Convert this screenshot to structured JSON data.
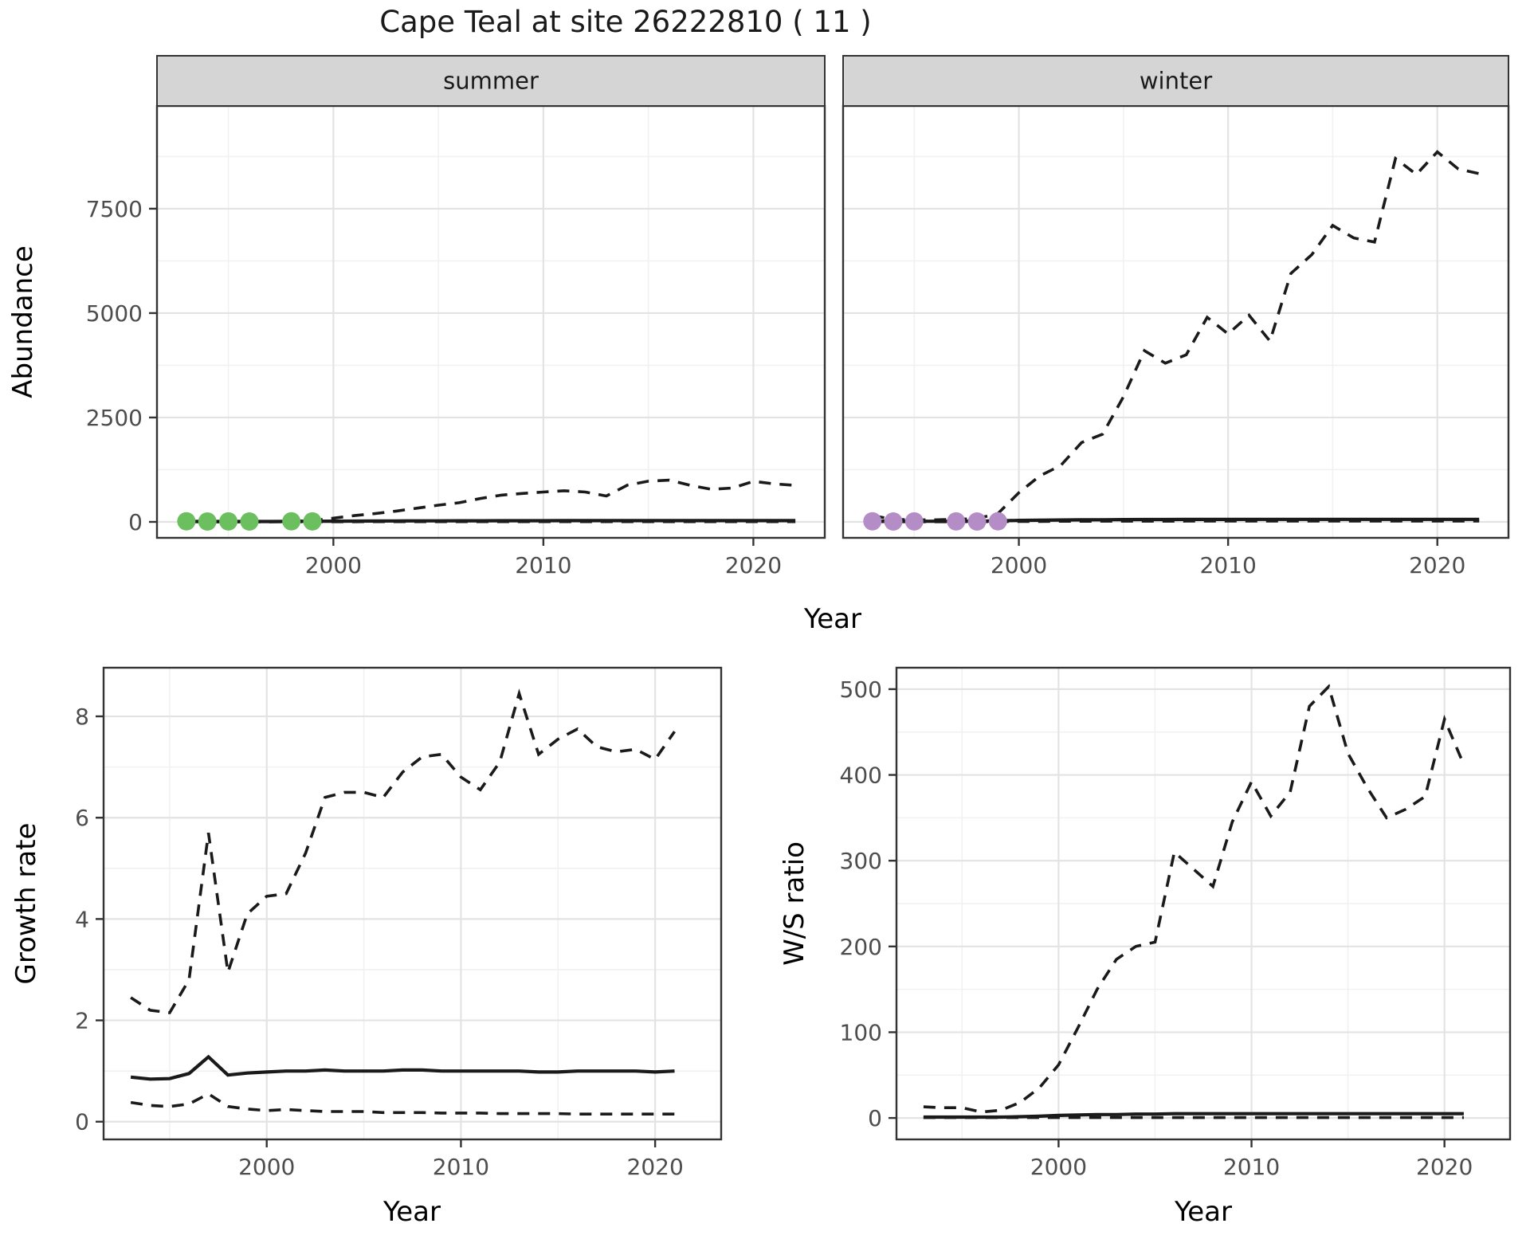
{
  "title": "Cape Teal at site 26222810 ( 11 )",
  "colors": {
    "line": "#1a1a1a",
    "summer_points": "#6cbf5f",
    "winter_points": "#b48cc6",
    "strip_bg": "#d5d5d5",
    "panel_bg": "#ffffff",
    "panel_border": "#333333",
    "grid_major": "#e3e3e3",
    "grid_minor": "#f1f1f1",
    "tick_text": "#4d4d4d",
    "axis_title_text": "#000000"
  },
  "chart_data": [
    {
      "id": "abundance-summer",
      "type": "line",
      "facet_label": "summer",
      "xlabel": "Year",
      "ylabel": "Abundance",
      "xlim": [
        1991.6,
        2023.4
      ],
      "ylim": [
        -382,
        9960
      ],
      "xticks": [
        2000,
        2010,
        2020
      ],
      "xticks_minor": [
        1995,
        2005,
        2015
      ],
      "yticks": [
        0,
        2500,
        5000,
        7500
      ],
      "yticks_minor": [
        1250,
        3750,
        6250,
        8750
      ],
      "grid": true,
      "series": [
        {
          "name": "modelled_upper_ci",
          "style": "dashed",
          "years": [
            1993,
            1994,
            1995,
            1996,
            1997,
            1998,
            1999,
            2000,
            2001,
            2002,
            2003,
            2004,
            2005,
            2006,
            2007,
            2008,
            2009,
            2010,
            2011,
            2012,
            2013,
            2014,
            2015,
            2016,
            2017,
            2018,
            2019,
            2020,
            2021,
            2022
          ],
          "values": [
            10,
            8,
            8,
            8,
            8,
            10,
            30,
            90,
            150,
            200,
            260,
            330,
            400,
            460,
            560,
            640,
            680,
            715,
            745,
            715,
            620,
            880,
            975,
            1000,
            875,
            780,
            810,
            970,
            910,
            875
          ]
        },
        {
          "name": "modelled_estimate",
          "style": "solid",
          "years": [
            1993,
            1994,
            1995,
            1996,
            1997,
            1998,
            1999,
            2000,
            2001,
            2002,
            2003,
            2004,
            2005,
            2006,
            2007,
            2008,
            2009,
            2010,
            2011,
            2012,
            2013,
            2014,
            2015,
            2016,
            2017,
            2018,
            2019,
            2020,
            2021,
            2022
          ],
          "values": [
            12,
            10,
            10,
            10,
            10,
            12,
            14,
            16,
            18,
            20,
            22,
            24,
            25,
            26,
            27,
            28,
            28,
            29,
            30,
            30,
            30,
            30,
            30,
            30,
            30,
            30,
            30,
            30,
            30,
            30
          ]
        },
        {
          "name": "modelled_lower_ci",
          "style": "dashed",
          "years": [
            1993,
            1994,
            1995,
            1996,
            1997,
            1998,
            1999,
            2000,
            2001,
            2002,
            2003,
            2004,
            2005,
            2006,
            2007,
            2008,
            2009,
            2010,
            2011,
            2012,
            2013,
            2014,
            2015,
            2016,
            2017,
            2018,
            2019,
            2020,
            2021,
            2022
          ],
          "values": [
            3,
            2,
            2,
            2,
            2,
            3,
            3,
            4,
            4,
            5,
            5,
            5,
            6,
            6,
            6,
            6,
            6,
            6,
            6,
            6,
            6,
            6,
            6,
            6,
            6,
            6,
            6,
            6,
            6,
            6
          ]
        },
        {
          "name": "observed_counts",
          "style": "points",
          "color_key": "summer_points",
          "years": [
            1993,
            1994,
            1995,
            1996,
            1998,
            1999
          ],
          "values": [
            15,
            10,
            12,
            10,
            14,
            12
          ]
        }
      ]
    },
    {
      "id": "abundance-winter",
      "type": "line",
      "facet_label": "winter",
      "xlabel": "Year",
      "ylabel": "Abundance",
      "xlim": [
        1991.6,
        2023.4
      ],
      "ylim": [
        -382,
        9960
      ],
      "xticks": [
        2000,
        2010,
        2020
      ],
      "xticks_minor": [
        1995,
        2005,
        2015
      ],
      "yticks": [
        0,
        2500,
        5000,
        7500
      ],
      "yticks_minor": [
        1250,
        3750,
        6250,
        8750
      ],
      "grid": true,
      "series": [
        {
          "name": "modelled_upper_ci",
          "style": "dashed",
          "years": [
            1993,
            1994,
            1995,
            1996,
            1997,
            1998,
            1999,
            2000,
            2001,
            2002,
            2003,
            2004,
            2005,
            2006,
            2007,
            2008,
            2009,
            2010,
            2011,
            2012,
            2013,
            2014,
            2015,
            2016,
            2017,
            2018,
            2019,
            2020,
            2021,
            2022
          ],
          "values": [
            150,
            60,
            50,
            50,
            60,
            80,
            200,
            700,
            1100,
            1350,
            1900,
            2100,
            3000,
            4100,
            3800,
            4000,
            4900,
            4500,
            4950,
            4330,
            5950,
            6400,
            7100,
            6800,
            6700,
            8700,
            8320,
            8860,
            8450,
            8340
          ]
        },
        {
          "name": "modelled_estimate",
          "style": "solid",
          "years": [
            1993,
            1994,
            1995,
            1996,
            1997,
            1998,
            1999,
            2000,
            2001,
            2002,
            2003,
            2004,
            2005,
            2006,
            2007,
            2008,
            2009,
            2010,
            2011,
            2012,
            2013,
            2014,
            2015,
            2016,
            2017,
            2018,
            2019,
            2020,
            2021,
            2022
          ],
          "values": [
            20,
            15,
            15,
            15,
            15,
            18,
            25,
            35,
            40,
            45,
            50,
            52,
            55,
            56,
            57,
            58,
            58,
            59,
            60,
            60,
            60,
            60,
            60,
            60,
            60,
            60,
            60,
            60,
            60,
            60
          ]
        },
        {
          "name": "modelled_lower_ci",
          "style": "dashed",
          "years": [
            1993,
            1994,
            1995,
            1996,
            1997,
            1998,
            1999,
            2000,
            2001,
            2002,
            2003,
            2004,
            2005,
            2006,
            2007,
            2008,
            2009,
            2010,
            2011,
            2012,
            2013,
            2014,
            2015,
            2016,
            2017,
            2018,
            2019,
            2020,
            2021,
            2022
          ],
          "values": [
            5,
            4,
            4,
            4,
            4,
            5,
            8,
            10,
            12,
            14,
            15,
            16,
            16,
            17,
            17,
            18,
            18,
            18,
            18,
            18,
            18,
            18,
            18,
            18,
            18,
            18,
            18,
            18,
            18,
            18
          ]
        },
        {
          "name": "observed_counts",
          "style": "points",
          "color_key": "winter_points",
          "years": [
            1993,
            1994,
            1995,
            1997,
            1998,
            1999
          ],
          "values": [
            15,
            10,
            12,
            12,
            10,
            14
          ]
        }
      ]
    },
    {
      "id": "growth-rate",
      "type": "line",
      "facet_label": null,
      "xlabel": "Year",
      "ylabel": "Growth rate",
      "xlim": [
        1991.6,
        2023.4
      ],
      "ylim": [
        -0.35,
        8.96
      ],
      "xticks": [
        2000,
        2010,
        2020
      ],
      "xticks_minor": [
        1995,
        2005,
        2015
      ],
      "yticks": [
        0,
        2,
        4,
        6,
        8
      ],
      "yticks_minor": [
        1,
        3,
        5,
        7
      ],
      "grid": true,
      "series": [
        {
          "name": "upper_ci",
          "style": "dashed",
          "years": [
            1993,
            1994,
            1995,
            1996,
            1997,
            1998,
            1999,
            2000,
            2001,
            2002,
            2003,
            2004,
            2005,
            2006,
            2007,
            2008,
            2009,
            2010,
            2011,
            2012,
            2013,
            2014,
            2015,
            2016,
            2017,
            2018,
            2019,
            2020,
            2021
          ],
          "values": [
            2.45,
            2.2,
            2.15,
            2.8,
            5.7,
            2.95,
            4.1,
            4.45,
            4.5,
            5.3,
            6.4,
            6.5,
            6.5,
            6.4,
            6.9,
            7.2,
            7.25,
            6.8,
            6.55,
            7.1,
            8.45,
            7.25,
            7.55,
            7.75,
            7.4,
            7.3,
            7.35,
            7.15,
            7.7
          ]
        },
        {
          "name": "estimate",
          "style": "solid",
          "years": [
            1993,
            1994,
            1995,
            1996,
            1997,
            1998,
            1999,
            2000,
            2001,
            2002,
            2003,
            2004,
            2005,
            2006,
            2007,
            2008,
            2009,
            2010,
            2011,
            2012,
            2013,
            2014,
            2015,
            2016,
            2017,
            2018,
            2019,
            2020,
            2021
          ],
          "values": [
            0.88,
            0.84,
            0.85,
            0.95,
            1.28,
            0.92,
            0.96,
            0.98,
            1.0,
            1.0,
            1.02,
            1.0,
            1.0,
            1.0,
            1.02,
            1.02,
            1.0,
            1.0,
            1.0,
            1.0,
            1.0,
            0.98,
            0.98,
            1.0,
            1.0,
            1.0,
            1.0,
            0.98,
            1.0
          ]
        },
        {
          "name": "lower_ci",
          "style": "dashed",
          "years": [
            1993,
            1994,
            1995,
            1996,
            1997,
            1998,
            1999,
            2000,
            2001,
            2002,
            2003,
            2004,
            2005,
            2006,
            2007,
            2008,
            2009,
            2010,
            2011,
            2012,
            2013,
            2014,
            2015,
            2016,
            2017,
            2018,
            2019,
            2020,
            2021
          ],
          "values": [
            0.38,
            0.32,
            0.3,
            0.35,
            0.55,
            0.3,
            0.25,
            0.22,
            0.24,
            0.22,
            0.2,
            0.2,
            0.2,
            0.18,
            0.18,
            0.18,
            0.17,
            0.17,
            0.17,
            0.16,
            0.16,
            0.16,
            0.16,
            0.15,
            0.15,
            0.15,
            0.15,
            0.15,
            0.15
          ]
        }
      ]
    },
    {
      "id": "ws-ratio",
      "type": "line",
      "facet_label": null,
      "xlabel": "Year",
      "ylabel": "W/S ratio",
      "xlim": [
        1991.6,
        2023.4
      ],
      "ylim": [
        -25,
        525
      ],
      "xticks": [
        2000,
        2010,
        2020
      ],
      "xticks_minor": [
        1995,
        2005,
        2015
      ],
      "yticks": [
        0,
        100,
        200,
        300,
        400,
        500
      ],
      "yticks_minor": [
        50,
        150,
        250,
        350,
        450
      ],
      "grid": true,
      "series": [
        {
          "name": "upper_ci",
          "style": "dashed",
          "years": [
            1993,
            1994,
            1995,
            1996,
            1997,
            1998,
            1999,
            2000,
            2001,
            2002,
            2003,
            2004,
            2005,
            2006,
            2007,
            2008,
            2009,
            2010,
            2011,
            2012,
            2013,
            2014,
            2015,
            2016,
            2017,
            2018,
            2019,
            2020,
            2021
          ],
          "values": [
            13,
            12,
            12,
            7,
            9,
            18,
            35,
            62,
            105,
            150,
            185,
            200,
            205,
            310,
            290,
            270,
            345,
            392,
            352,
            380,
            480,
            503,
            425,
            385,
            350,
            360,
            375,
            465,
            412
          ]
        },
        {
          "name": "estimate",
          "style": "solid",
          "years": [
            1993,
            1994,
            1995,
            1996,
            1997,
            1998,
            1999,
            2000,
            2001,
            2002,
            2003,
            2004,
            2005,
            2006,
            2007,
            2008,
            2009,
            2010,
            2011,
            2012,
            2013,
            2014,
            2015,
            2016,
            2017,
            2018,
            2019,
            2020,
            2021
          ],
          "values": [
            1,
            1,
            1,
            1,
            1,
            1.5,
            2,
            3,
            3.5,
            4,
            4,
            4.5,
            4.5,
            5,
            5,
            5,
            5,
            5,
            5,
            5,
            5,
            5,
            5,
            5,
            5,
            5,
            5,
            5,
            5
          ]
        },
        {
          "name": "lower_ci",
          "style": "dashed",
          "years": [
            1993,
            1994,
            1995,
            1996,
            1997,
            1998,
            1999,
            2000,
            2001,
            2002,
            2003,
            2004,
            2005,
            2006,
            2007,
            2008,
            2009,
            2010,
            2011,
            2012,
            2013,
            2014,
            2015,
            2016,
            2017,
            2018,
            2019,
            2020,
            2021
          ],
          "values": [
            0.5,
            0.5,
            0.5,
            0.5,
            0.5,
            0.5,
            0.5,
            0.5,
            0.5,
            0.5,
            0.5,
            0.5,
            0.5,
            0.5,
            0.5,
            0.5,
            0.5,
            0.5,
            0.5,
            0.5,
            0.5,
            0.5,
            0.5,
            0.5,
            0.5,
            0.5,
            0.5,
            0.5,
            0.5
          ]
        }
      ]
    }
  ]
}
